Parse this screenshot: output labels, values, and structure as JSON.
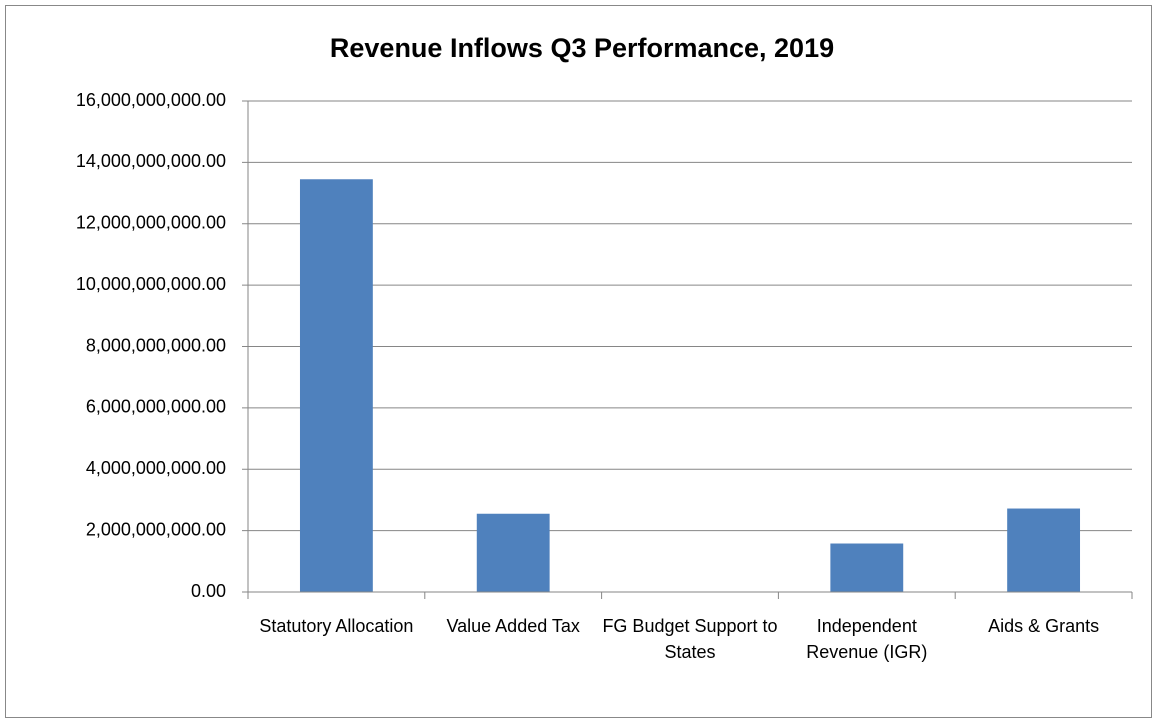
{
  "chart_data": {
    "type": "bar",
    "title": "Revenue Inflows Q3 Performance, 2019",
    "categories": [
      "Statutory Allocation",
      "Value Added Tax",
      "FG Budget Support to States",
      "Independent Revenue (IGR)",
      "Aids & Grants"
    ],
    "values": [
      13450000000,
      2550000000,
      0,
      1580000000,
      2720000000
    ],
    "color": "#4f81bd",
    "ylim": [
      0,
      16000000000
    ],
    "yticks": [
      {
        "value": 0,
        "label": "0.00"
      },
      {
        "value": 2000000000,
        "label": "2,000,000,000.00"
      },
      {
        "value": 4000000000,
        "label": "4,000,000,000.00"
      },
      {
        "value": 6000000000,
        "label": "6,000,000,000.00"
      },
      {
        "value": 8000000000,
        "label": "8,000,000,000.00"
      },
      {
        "value": 10000000000,
        "label": "10,000,000,000.00"
      },
      {
        "value": 12000000000,
        "label": "12,000,000,000.00"
      },
      {
        "value": 14000000000,
        "label": "14,000,000,000.00"
      },
      {
        "value": 16000000000,
        "label": "16,000,000,000.00"
      }
    ],
    "grid": true
  }
}
